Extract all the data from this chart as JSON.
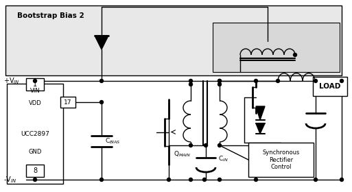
{
  "bootstrap_fill": "#e8e8e8",
  "ic_fill": "#ffffff",
  "line_color": "#000000",
  "bg_color": "#ffffff",
  "bootstrap_label": "Bootstrap Bias 2",
  "ic_label": "UCC2897",
  "vin_label": "VIN",
  "vdd_label": "VDD",
  "gnd_label": "GND",
  "pin1_label": "1",
  "pin17_label": "17",
  "pin8_label": "8",
  "load_label": "LOAD",
  "sync_label": "Synchronous\nRectifier\nControl",
  "cbias_label": "C$_{BIAS}$",
  "cin_label": "C$_{IN}$",
  "qmain_label": "Q$_{MAIN}$",
  "plus_vin_label": "+V$_{IN}$",
  "minus_vin_label": "-V$_{IN}$"
}
